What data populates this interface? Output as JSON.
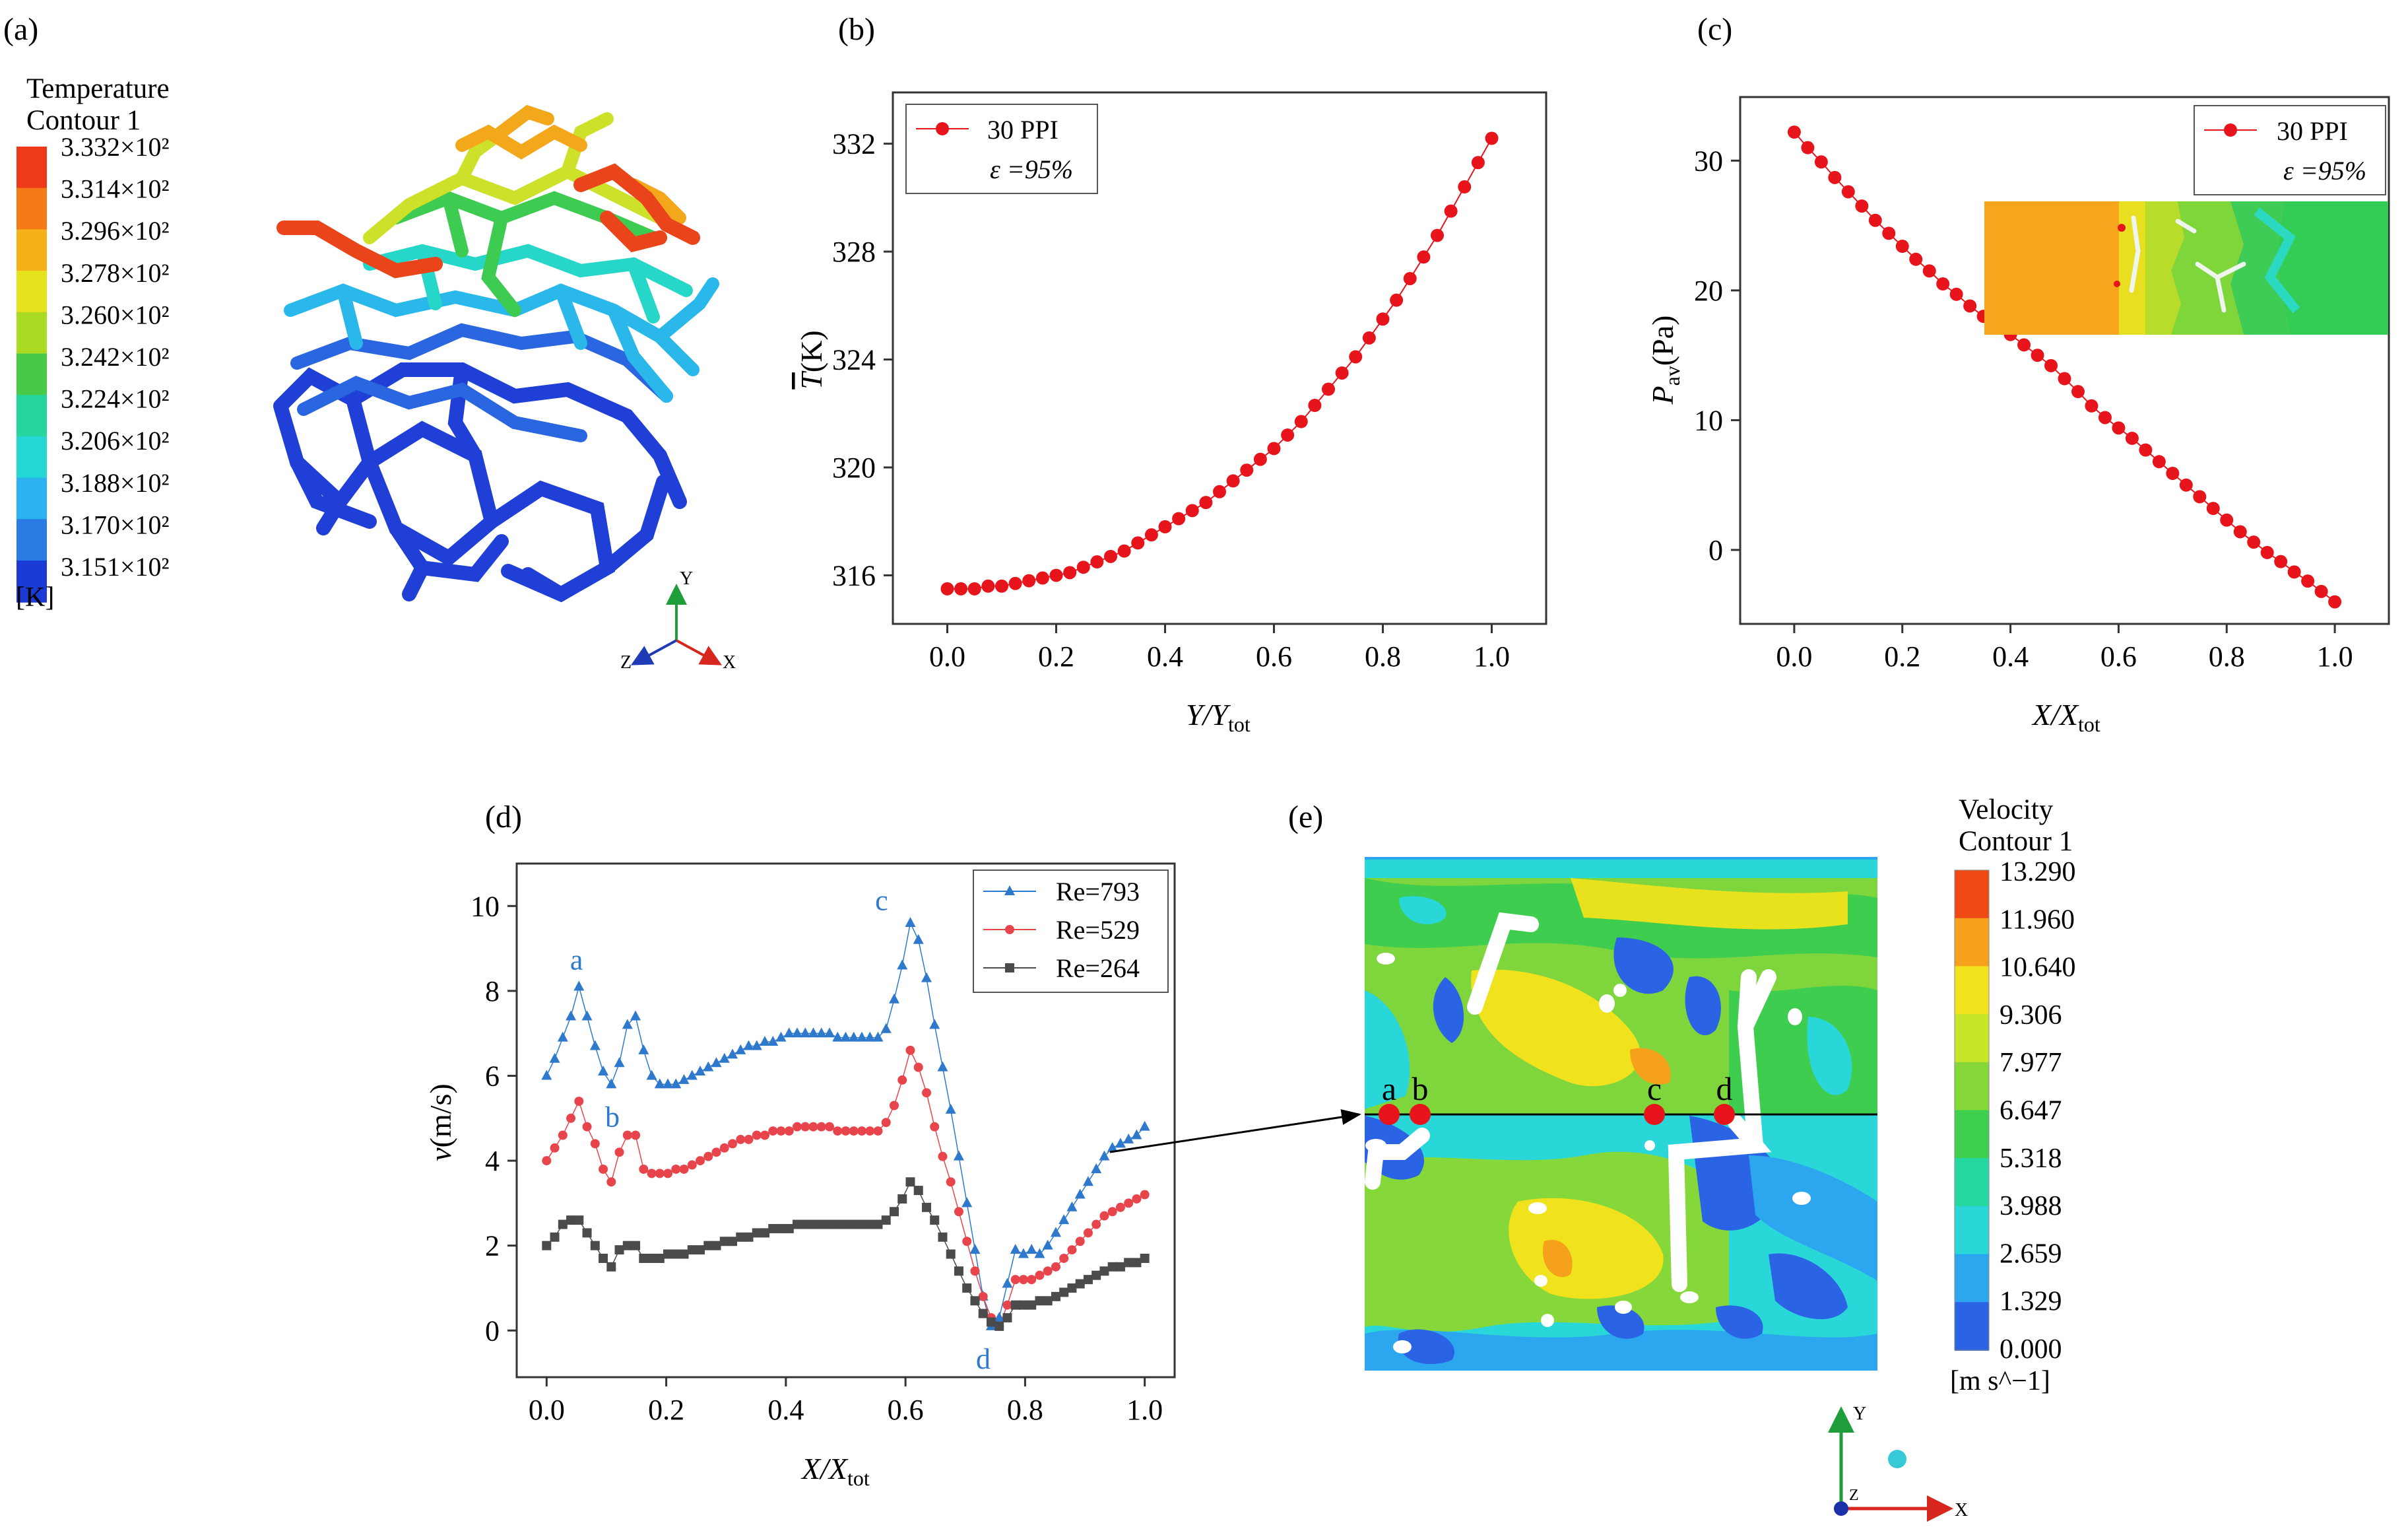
{
  "panels": {
    "a": {
      "label": "(a)",
      "legend_title": [
        "Temperature",
        "Contour 1"
      ],
      "unit": "[K]",
      "levels": [
        "3.332×10²",
        "3.314×10²",
        "3.296×10²",
        "3.278×10²",
        "3.260×10²",
        "3.242×10²",
        "3.224×10²",
        "3.206×10²",
        "3.188×10²",
        "3.170×10²",
        "3.151×10²"
      ],
      "colors": [
        "#ef3a1a",
        "#f47b17",
        "#f6b11a",
        "#e7e21e",
        "#a9db23",
        "#48c947",
        "#24d69e",
        "#24d7d7",
        "#2bb2ef",
        "#2a7ae3",
        "#1a3bd6"
      ],
      "axes": {
        "y": "Y",
        "x": "X",
        "z": "Z"
      }
    },
    "e": {
      "label": "(e)",
      "legend_title": [
        "Velocity",
        "Contour 1"
      ],
      "unit": "[m s^−1]",
      "levels": [
        "13.290",
        "11.960",
        "10.640",
        "9.306",
        "7.977",
        "6.647",
        "5.318",
        "3.988",
        "2.659",
        "1.329",
        "0.000"
      ],
      "colors": [
        "#ef4a16",
        "#f5a11b",
        "#f0e21c",
        "#c8e52a",
        "#86d83a",
        "#3ecf4e",
        "#25d8a2",
        "#2ad7d8",
        "#2ca6ee",
        "#2a64e4"
      ],
      "points": [
        "a",
        "b",
        "c",
        "d"
      ],
      "axes": {
        "y": "Y",
        "x": "X",
        "z": "Z"
      }
    }
  },
  "chart_data": [
    {
      "id": "b",
      "label": "(b)",
      "type": "line",
      "xlabel": "Y/Y",
      "xlabel_sub": "tot",
      "ylabel": "T",
      "ylabel_unit": "(K)",
      "xlim": [
        -0.1,
        1.1
      ],
      "ylim": [
        314.2,
        333.9
      ],
      "xticks": [
        0.0,
        0.2,
        0.4,
        0.6,
        0.8,
        1.0
      ],
      "xtick_labels": [
        "0.0",
        "0.2",
        "0.4",
        "0.6",
        "0.8",
        "1.0"
      ],
      "yticks": [
        316,
        320,
        324,
        328,
        332
      ],
      "ytick_labels": [
        "316",
        "320",
        "324",
        "328",
        "332"
      ],
      "legend": {
        "series": "30 PPI",
        "note": "ε =95%",
        "position": "top-left"
      },
      "color": "#e8141c",
      "x": [
        0.0,
        0.025,
        0.05,
        0.075,
        0.1,
        0.125,
        0.15,
        0.175,
        0.2,
        0.225,
        0.25,
        0.275,
        0.3,
        0.325,
        0.35,
        0.375,
        0.4,
        0.425,
        0.45,
        0.475,
        0.5,
        0.525,
        0.55,
        0.575,
        0.6,
        0.625,
        0.65,
        0.675,
        0.7,
        0.725,
        0.75,
        0.775,
        0.8,
        0.825,
        0.85,
        0.875,
        0.9,
        0.925,
        0.95,
        0.975,
        1.0
      ],
      "y": [
        315.5,
        315.5,
        315.5,
        315.6,
        315.6,
        315.7,
        315.8,
        315.9,
        316.0,
        316.1,
        316.3,
        316.5,
        316.7,
        316.9,
        317.2,
        317.5,
        317.8,
        318.1,
        318.4,
        318.7,
        319.1,
        319.5,
        319.9,
        320.3,
        320.7,
        321.2,
        321.7,
        322.3,
        322.9,
        323.5,
        324.1,
        324.8,
        325.5,
        326.2,
        327.0,
        327.8,
        328.6,
        329.5,
        330.4,
        331.3,
        332.2
      ]
    },
    {
      "id": "c",
      "label": "(c)",
      "type": "line",
      "xlabel": "X/X",
      "xlabel_sub": "tot",
      "ylabel": "P",
      "ylabel_sub": "av",
      "ylabel_unit": "(Pa)",
      "xlim": [
        -0.1,
        1.1
      ],
      "ylim": [
        -5.7,
        34.9
      ],
      "xticks": [
        0.0,
        0.2,
        0.4,
        0.6,
        0.8,
        1.0
      ],
      "xtick_labels": [
        "0.0",
        "0.2",
        "0.4",
        "0.6",
        "0.8",
        "1.0"
      ],
      "yticks": [
        0,
        10,
        20,
        30
      ],
      "ytick_labels": [
        "0",
        "10",
        "20",
        "30"
      ],
      "legend": {
        "series": "30 PPI",
        "note": "ε =95%",
        "position": "top-right"
      },
      "color": "#e8141c",
      "x": [
        0.0,
        0.025,
        0.05,
        0.075,
        0.1,
        0.125,
        0.15,
        0.175,
        0.2,
        0.225,
        0.25,
        0.275,
        0.3,
        0.325,
        0.35,
        0.375,
        0.4,
        0.425,
        0.45,
        0.475,
        0.5,
        0.525,
        0.55,
        0.575,
        0.6,
        0.625,
        0.65,
        0.675,
        0.7,
        0.725,
        0.75,
        0.775,
        0.8,
        0.825,
        0.85,
        0.875,
        0.9,
        0.925,
        0.95,
        0.975,
        1.0
      ],
      "y": [
        32.2,
        31.0,
        29.9,
        28.7,
        27.6,
        26.5,
        25.4,
        24.4,
        23.4,
        22.4,
        21.5,
        20.5,
        19.7,
        18.8,
        18.0,
        17.3,
        16.6,
        15.8,
        15.0,
        14.2,
        13.2,
        12.2,
        11.1,
        10.2,
        9.4,
        8.6,
        7.7,
        6.8,
        5.9,
        5.0,
        4.1,
        3.2,
        2.3,
        1.4,
        0.6,
        -0.2,
        -0.9,
        -1.7,
        -2.4,
        -3.2,
        -4.0
      ]
    },
    {
      "id": "d",
      "label": "(d)",
      "type": "line",
      "xlabel": "X/X",
      "xlabel_sub": "tot",
      "ylabel": "v",
      "ylabel_unit": "(m/s)",
      "xlim": [
        -0.05,
        1.05
      ],
      "ylim": [
        -1.1,
        11.0
      ],
      "xticks": [
        0.0,
        0.2,
        0.4,
        0.6,
        0.8,
        1.0
      ],
      "xtick_labels": [
        "0.0",
        "0.2",
        "0.4",
        "0.6",
        "0.8",
        "1.0"
      ],
      "yticks": [
        0,
        2,
        4,
        6,
        8,
        10
      ],
      "ytick_labels": [
        "0",
        "2",
        "4",
        "6",
        "8",
        "10"
      ],
      "legend_position": "top-right",
      "annotations": [
        {
          "text": "a",
          "x": 0.05,
          "y": 8.5
        },
        {
          "text": "b",
          "x": 0.11,
          "y": 4.8
        },
        {
          "text": "c",
          "x": 0.56,
          "y": 9.9
        },
        {
          "text": "d",
          "x": 0.73,
          "y": -0.9
        }
      ],
      "series": [
        {
          "name": "Re=793",
          "marker": "triangle",
          "color": "#2f79cc",
          "y": [
            6.0,
            6.4,
            6.9,
            7.4,
            8.1,
            7.4,
            6.7,
            6.1,
            5.8,
            6.3,
            7.2,
            7.4,
            6.6,
            6.0,
            5.8,
            5.8,
            5.8,
            5.9,
            6.0,
            6.1,
            6.2,
            6.3,
            6.4,
            6.5,
            6.6,
            6.7,
            6.7,
            6.8,
            6.8,
            6.9,
            7.0,
            7.0,
            7.0,
            7.0,
            7.0,
            7.0,
            6.9,
            6.9,
            6.9,
            6.9,
            6.9,
            6.9,
            7.1,
            7.8,
            8.6,
            9.6,
            9.2,
            8.3,
            7.2,
            6.2,
            5.2,
            4.1,
            3.0,
            1.9,
            0.8,
            0.1,
            0.3,
            1.1,
            1.9,
            1.8,
            1.9,
            1.8,
            2.0,
            2.3,
            2.6,
            2.9,
            3.2,
            3.5,
            3.8,
            4.1,
            4.3,
            4.4,
            4.5,
            4.6,
            4.8
          ]
        },
        {
          "name": "Re=529",
          "marker": "circle",
          "color": "#e8444c",
          "y": [
            4.0,
            4.3,
            4.6,
            5.0,
            5.4,
            4.8,
            4.4,
            3.8,
            3.5,
            4.2,
            4.6,
            4.6,
            3.8,
            3.7,
            3.7,
            3.7,
            3.8,
            3.8,
            3.9,
            4.0,
            4.1,
            4.2,
            4.3,
            4.4,
            4.5,
            4.5,
            4.6,
            4.6,
            4.7,
            4.7,
            4.7,
            4.8,
            4.8,
            4.8,
            4.8,
            4.8,
            4.7,
            4.7,
            4.7,
            4.7,
            4.7,
            4.7,
            4.9,
            5.3,
            5.9,
            6.6,
            6.2,
            5.6,
            4.8,
            4.1,
            3.5,
            2.8,
            2.1,
            1.4,
            0.8,
            0.3,
            0.1,
            0.6,
            1.2,
            1.2,
            1.2,
            1.3,
            1.4,
            1.5,
            1.7,
            1.9,
            2.1,
            2.3,
            2.5,
            2.7,
            2.8,
            2.9,
            3.0,
            3.1,
            3.2
          ]
        },
        {
          "name": "Re=264",
          "marker": "square",
          "color": "#4b4b4b",
          "y": [
            2.0,
            2.2,
            2.5,
            2.6,
            2.6,
            2.3,
            2.0,
            1.7,
            1.5,
            1.9,
            2.0,
            2.0,
            1.7,
            1.7,
            1.7,
            1.8,
            1.8,
            1.8,
            1.9,
            1.9,
            2.0,
            2.0,
            2.1,
            2.1,
            2.2,
            2.2,
            2.3,
            2.3,
            2.4,
            2.4,
            2.4,
            2.5,
            2.5,
            2.5,
            2.5,
            2.5,
            2.5,
            2.5,
            2.5,
            2.5,
            2.5,
            2.5,
            2.6,
            2.8,
            3.1,
            3.5,
            3.3,
            2.9,
            2.6,
            2.2,
            1.8,
            1.4,
            1.0,
            0.7,
            0.4,
            0.2,
            0.1,
            0.3,
            0.6,
            0.6,
            0.6,
            0.7,
            0.7,
            0.8,
            0.9,
            1.0,
            1.1,
            1.2,
            1.3,
            1.4,
            1.5,
            1.5,
            1.6,
            1.6,
            1.7
          ]
        }
      ]
    }
  ]
}
